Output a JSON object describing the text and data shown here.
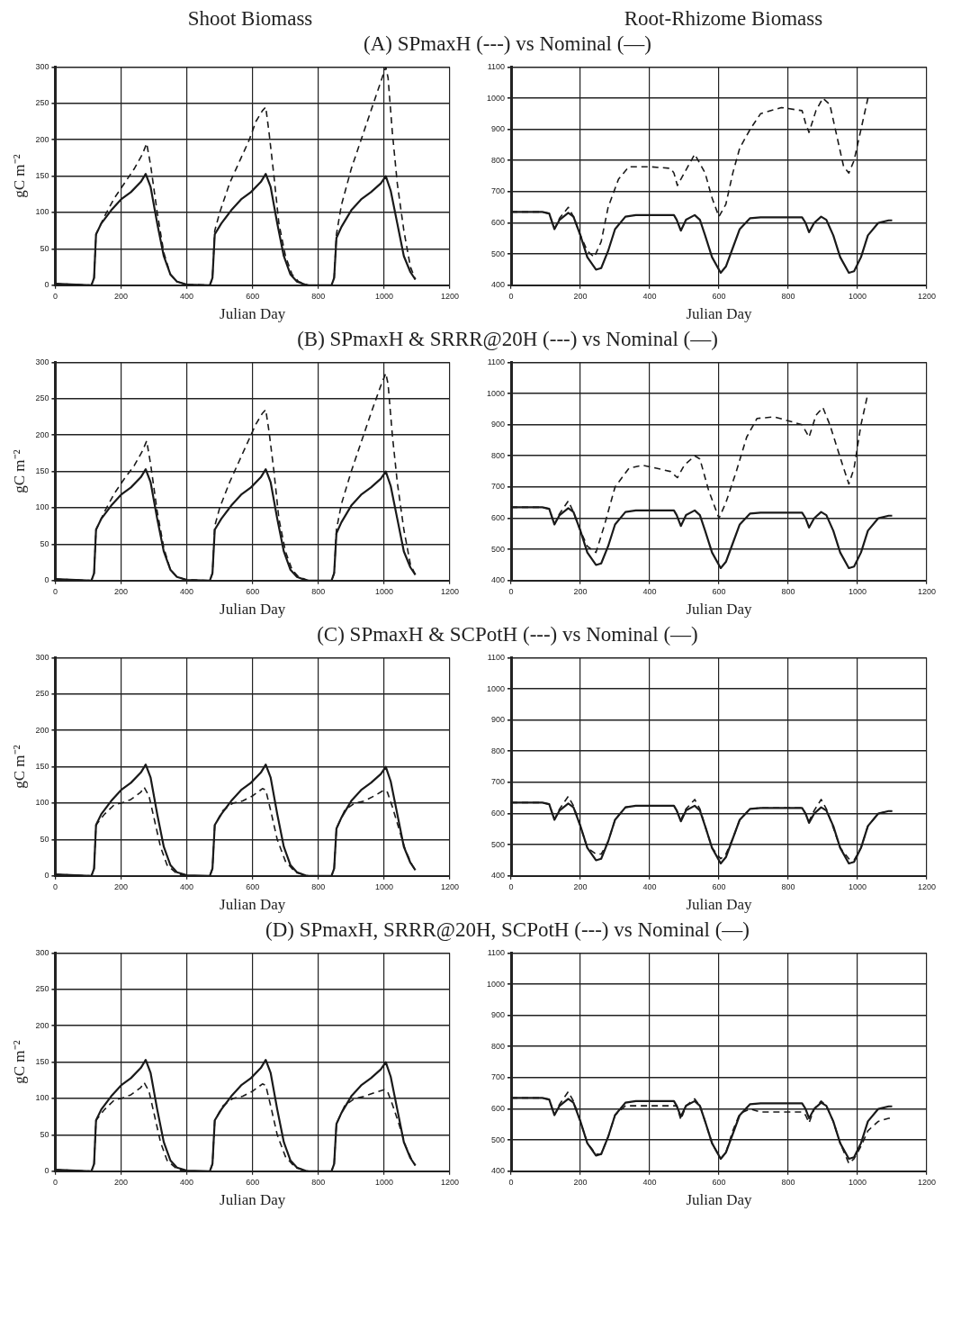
{
  "chart_data": [
    {
      "type": "line",
      "title": "Shoot Biomass",
      "subtitle": "(A) SPmaxH (---) vs Nominal (—)",
      "xlabel": "Julian Day",
      "ylabel": "gC m⁻²",
      "xlim": [
        0,
        1200
      ],
      "xticks": [
        0,
        200,
        400,
        600,
        800,
        1000,
        1200
      ],
      "ylim": [
        0,
        300
      ],
      "yticks": [
        0,
        50,
        100,
        150,
        200,
        250,
        300
      ],
      "grid": true,
      "series": [
        {
          "color": "#1a1a1a",
          "line_style": "solid",
          "x": [
            0,
            110,
            118,
            124,
            140,
            170,
            200,
            230,
            260,
            275,
            290,
            310,
            330,
            350,
            370,
            400,
            470,
            478,
            485,
            505,
            535,
            565,
            595,
            625,
            640,
            655,
            675,
            695,
            715,
            735,
            765,
            840,
            848,
            855,
            870,
            900,
            930,
            960,
            990,
            1005,
            1020,
            1040,
            1060,
            1080,
            1095
          ],
          "values": [
            2,
            0,
            10,
            70,
            85,
            103,
            118,
            128,
            142,
            153,
            135,
            85,
            40,
            15,
            5,
            1,
            0,
            10,
            70,
            85,
            103,
            118,
            128,
            142,
            153,
            135,
            85,
            40,
            15,
            5,
            0,
            0,
            10,
            65,
            80,
            103,
            118,
            128,
            140,
            150,
            130,
            85,
            40,
            18,
            8
          ]
        },
        {
          "color": "#1a1a1a",
          "line_style": "dashed",
          "x": [
            0,
            110,
            118,
            124,
            150,
            180,
            210,
            240,
            265,
            278,
            290,
            310,
            330,
            350,
            370,
            400,
            470,
            478,
            485,
            500,
            530,
            560,
            590,
            610,
            630,
            640,
            650,
            665,
            680,
            700,
            720,
            740,
            770,
            840,
            848,
            855,
            870,
            900,
            930,
            960,
            990,
            1005,
            1012,
            1025,
            1040,
            1060,
            1080,
            1095
          ],
          "values": [
            2,
            0,
            10,
            70,
            95,
            120,
            140,
            160,
            180,
            195,
            165,
            100,
            45,
            15,
            5,
            1,
            0,
            10,
            75,
            100,
            140,
            170,
            200,
            225,
            240,
            245,
            210,
            150,
            85,
            40,
            15,
            5,
            0,
            0,
            10,
            70,
            110,
            160,
            200,
            240,
            280,
            300,
            285,
            210,
            140,
            75,
            25,
            8
          ]
        }
      ]
    },
    {
      "type": "line",
      "title": "Root-Rhizome Biomass",
      "xlabel": "Julian Day",
      "xlim": [
        0,
        1200
      ],
      "xticks": [
        0,
        200,
        400,
        600,
        800,
        1000,
        1200
      ],
      "ylim": [
        400,
        1100
      ],
      "yticks": [
        400,
        500,
        600,
        700,
        800,
        900,
        1000,
        1100
      ],
      "grid": true,
      "series": [
        {
          "color": "#1a1a1a",
          "line_style": "solid",
          "x": [
            0,
            90,
            110,
            125,
            140,
            165,
            180,
            200,
            220,
            245,
            260,
            280,
            300,
            330,
            360,
            470,
            478,
            490,
            505,
            530,
            545,
            560,
            580,
            605,
            620,
            640,
            660,
            690,
            720,
            840,
            850,
            860,
            875,
            895,
            910,
            930,
            950,
            975,
            990,
            1010,
            1030,
            1060,
            1090,
            1100
          ],
          "values": [
            635,
            635,
            630,
            580,
            610,
            632,
            620,
            560,
            490,
            450,
            455,
            510,
            580,
            620,
            625,
            625,
            610,
            575,
            610,
            625,
            610,
            560,
            490,
            440,
            460,
            520,
            580,
            615,
            618,
            618,
            600,
            570,
            600,
            620,
            610,
            560,
            490,
            440,
            445,
            490,
            560,
            600,
            608,
            608
          ]
        },
        {
          "color": "#1a1a1a",
          "line_style": "dashed",
          "x": [
            0,
            90,
            110,
            125,
            140,
            165,
            180,
            200,
            220,
            240,
            260,
            280,
            310,
            340,
            400,
            460,
            470,
            480,
            500,
            530,
            560,
            580,
            600,
            620,
            640,
            660,
            690,
            720,
            780,
            840,
            850,
            860,
            880,
            900,
            920,
            940,
            960,
            975,
            990,
            1010,
            1030
          ],
          "values": [
            635,
            635,
            630,
            580,
            615,
            650,
            620,
            560,
            510,
            490,
            540,
            650,
            740,
            780,
            780,
            775,
            760,
            720,
            760,
            820,
            760,
            680,
            620,
            660,
            760,
            840,
            900,
            950,
            970,
            960,
            920,
            890,
            960,
            1000,
            980,
            880,
            780,
            760,
            800,
            900,
            1000
          ]
        }
      ]
    },
    {
      "type": "line",
      "subtitle": "(B) SPmaxH & SRRR@20H (---) vs Nominal (—)",
      "xlabel": "Julian Day",
      "ylabel": "gC m⁻²",
      "xlim": [
        0,
        1200
      ],
      "xticks": [
        0,
        200,
        400,
        600,
        800,
        1000,
        1200
      ],
      "ylim": [
        0,
        300
      ],
      "yticks": [
        0,
        50,
        100,
        150,
        200,
        250,
        300
      ],
      "grid": true,
      "series": [
        {
          "color": "#1a1a1a",
          "line_style": "solid",
          "x": [
            0,
            110,
            118,
            124,
            140,
            170,
            200,
            230,
            260,
            275,
            290,
            310,
            330,
            350,
            370,
            400,
            470,
            478,
            485,
            505,
            535,
            565,
            595,
            625,
            640,
            655,
            675,
            695,
            715,
            735,
            765,
            840,
            848,
            855,
            870,
            900,
            930,
            960,
            990,
            1005,
            1020,
            1040,
            1060,
            1080,
            1095
          ],
          "values": [
            2,
            0,
            10,
            70,
            85,
            103,
            118,
            128,
            142,
            153,
            135,
            85,
            40,
            15,
            5,
            1,
            0,
            10,
            70,
            85,
            103,
            118,
            128,
            142,
            153,
            135,
            85,
            40,
            15,
            5,
            0,
            0,
            10,
            65,
            80,
            103,
            118,
            128,
            140,
            150,
            130,
            85,
            40,
            18,
            8
          ]
        },
        {
          "color": "#1a1a1a",
          "line_style": "dashed",
          "x": [
            0,
            110,
            118,
            124,
            150,
            180,
            210,
            240,
            265,
            278,
            290,
            310,
            330,
            350,
            370,
            400,
            470,
            478,
            485,
            500,
            530,
            560,
            590,
            610,
            630,
            640,
            650,
            665,
            680,
            700,
            720,
            740,
            770,
            840,
            848,
            855,
            870,
            900,
            930,
            960,
            990,
            1005,
            1012,
            1025,
            1040,
            1060,
            1080,
            1095
          ],
          "values": [
            2,
            0,
            10,
            70,
            95,
            120,
            140,
            158,
            178,
            192,
            160,
            95,
            45,
            15,
            5,
            1,
            0,
            10,
            75,
            100,
            135,
            165,
            195,
            215,
            230,
            235,
            205,
            150,
            85,
            40,
            15,
            5,
            0,
            0,
            10,
            70,
            105,
            150,
            190,
            230,
            268,
            285,
            270,
            200,
            135,
            70,
            22,
            8
          ]
        }
      ]
    },
    {
      "type": "line",
      "xlabel": "Julian Day",
      "xlim": [
        0,
        1200
      ],
      "xticks": [
        0,
        200,
        400,
        600,
        800,
        1000,
        1200
      ],
      "ylim": [
        400,
        1100
      ],
      "yticks": [
        400,
        500,
        600,
        700,
        800,
        900,
        1000,
        1100
      ],
      "grid": true,
      "series": [
        {
          "color": "#1a1a1a",
          "line_style": "solid",
          "x": [
            0,
            90,
            110,
            125,
            140,
            165,
            180,
            200,
            220,
            245,
            260,
            280,
            300,
            330,
            360,
            470,
            478,
            490,
            505,
            530,
            545,
            560,
            580,
            605,
            620,
            640,
            660,
            690,
            720,
            840,
            850,
            860,
            875,
            895,
            910,
            930,
            950,
            975,
            990,
            1010,
            1030,
            1060,
            1090,
            1100
          ],
          "values": [
            635,
            635,
            630,
            580,
            610,
            632,
            620,
            560,
            490,
            450,
            455,
            510,
            580,
            620,
            625,
            625,
            610,
            575,
            610,
            625,
            610,
            560,
            490,
            440,
            460,
            520,
            580,
            615,
            618,
            618,
            600,
            570,
            600,
            620,
            610,
            560,
            490,
            440,
            445,
            490,
            560,
            600,
            608,
            608
          ]
        },
        {
          "color": "#1a1a1a",
          "line_style": "dashed",
          "x": [
            0,
            90,
            110,
            125,
            140,
            165,
            180,
            200,
            220,
            245,
            270,
            300,
            340,
            380,
            460,
            480,
            500,
            530,
            545,
            570,
            600,
            620,
            650,
            680,
            710,
            760,
            840,
            860,
            880,
            900,
            920,
            940,
            960,
            975,
            990,
            1010,
            1030
          ],
          "values": [
            635,
            635,
            630,
            580,
            615,
            655,
            620,
            560,
            510,
            490,
            580,
            700,
            760,
            770,
            750,
            730,
            770,
            800,
            790,
            690,
            600,
            650,
            750,
            860,
            920,
            925,
            900,
            860,
            930,
            955,
            900,
            830,
            760,
            710,
            760,
            900,
            1000
          ]
        }
      ]
    },
    {
      "type": "line",
      "subtitle": "(C) SPmaxH & SCPotH (---) vs Nominal (—)",
      "xlabel": "Julian Day",
      "ylabel": "gC m⁻²",
      "xlim": [
        0,
        1200
      ],
      "xticks": [
        0,
        200,
        400,
        600,
        800,
        1000,
        1200
      ],
      "ylim": [
        0,
        300
      ],
      "yticks": [
        0,
        50,
        100,
        150,
        200,
        250,
        300
      ],
      "grid": true,
      "series": [
        {
          "color": "#1a1a1a",
          "line_style": "solid",
          "x": [
            0,
            110,
            118,
            124,
            140,
            170,
            200,
            230,
            260,
            275,
            290,
            310,
            330,
            350,
            370,
            400,
            470,
            478,
            485,
            505,
            535,
            565,
            595,
            625,
            640,
            655,
            675,
            695,
            715,
            735,
            765,
            840,
            848,
            855,
            870,
            900,
            930,
            960,
            990,
            1005,
            1020,
            1040,
            1060,
            1080,
            1095
          ],
          "values": [
            2,
            0,
            10,
            70,
            85,
            103,
            118,
            128,
            142,
            153,
            135,
            85,
            40,
            15,
            5,
            1,
            0,
            10,
            70,
            85,
            103,
            118,
            128,
            142,
            153,
            135,
            85,
            40,
            15,
            5,
            0,
            0,
            10,
            65,
            80,
            103,
            118,
            128,
            140,
            150,
            130,
            85,
            40,
            18,
            8
          ]
        },
        {
          "color": "#1a1a1a",
          "line_style": "dashed",
          "x": [
            0,
            110,
            118,
            124,
            150,
            180,
            200,
            230,
            260,
            270,
            285,
            300,
            320,
            340,
            370,
            400,
            470,
            478,
            485,
            510,
            540,
            570,
            600,
            630,
            640,
            655,
            675,
            700,
            730,
            770,
            840,
            848,
            855,
            880,
            910,
            940,
            970,
            1000,
            1010,
            1025,
            1045,
            1065,
            1085,
            1095
          ],
          "values": [
            2,
            0,
            10,
            70,
            85,
            98,
            100,
            105,
            115,
            122,
            110,
            80,
            40,
            15,
            3,
            0,
            0,
            10,
            70,
            90,
            100,
            103,
            110,
            120,
            118,
            90,
            50,
            20,
            5,
            0,
            0,
            10,
            65,
            90,
            100,
            103,
            110,
            118,
            115,
            95,
            65,
            35,
            15,
            8
          ]
        }
      ]
    },
    {
      "type": "line",
      "xlabel": "Julian Day",
      "xlim": [
        0,
        1200
      ],
      "xticks": [
        0,
        200,
        400,
        600,
        800,
        1000,
        1200
      ],
      "ylim": [
        400,
        1100
      ],
      "yticks": [
        400,
        500,
        600,
        700,
        800,
        900,
        1000,
        1100
      ],
      "grid": true,
      "series": [
        {
          "color": "#1a1a1a",
          "line_style": "solid",
          "x": [
            0,
            90,
            110,
            125,
            140,
            165,
            180,
            200,
            220,
            245,
            260,
            280,
            300,
            330,
            360,
            470,
            478,
            490,
            505,
            530,
            545,
            560,
            580,
            605,
            620,
            640,
            660,
            690,
            720,
            840,
            850,
            860,
            875,
            895,
            910,
            930,
            950,
            975,
            990,
            1010,
            1030,
            1060,
            1090,
            1100
          ],
          "values": [
            635,
            635,
            630,
            580,
            610,
            632,
            620,
            560,
            490,
            450,
            455,
            510,
            580,
            620,
            625,
            625,
            610,
            575,
            610,
            625,
            610,
            560,
            490,
            440,
            460,
            520,
            580,
            615,
            618,
            618,
            600,
            570,
            600,
            620,
            610,
            560,
            490,
            440,
            445,
            490,
            560,
            600,
            608,
            608
          ]
        },
        {
          "color": "#1a1a1a",
          "line_style": "dashed",
          "x": [
            0,
            90,
            110,
            125,
            140,
            165,
            180,
            200,
            220,
            245,
            260,
            280,
            300,
            330,
            360,
            470,
            478,
            490,
            505,
            530,
            545,
            560,
            580,
            605,
            620,
            640,
            660,
            690,
            720,
            840,
            850,
            860,
            875,
            895,
            910,
            930,
            950,
            975,
            990,
            1010,
            1030,
            1060,
            1090,
            1100
          ],
          "values": [
            635,
            635,
            630,
            580,
            615,
            655,
            625,
            560,
            490,
            470,
            470,
            510,
            580,
            620,
            625,
            625,
            610,
            580,
            615,
            645,
            615,
            560,
            490,
            455,
            470,
            520,
            580,
            615,
            618,
            618,
            600,
            575,
            610,
            645,
            615,
            555,
            490,
            455,
            450,
            490,
            560,
            600,
            608,
            608
          ]
        }
      ]
    },
    {
      "type": "line",
      "subtitle": "(D) SPmaxH, SRRR@20H, SCPotH (---) vs Nominal (—)",
      "xlabel": "Julian Day",
      "ylabel": "gC m⁻²",
      "xlim": [
        0,
        1200
      ],
      "xticks": [
        0,
        200,
        400,
        600,
        800,
        1000,
        1200
      ],
      "ylim": [
        0,
        300
      ],
      "yticks": [
        0,
        50,
        100,
        150,
        200,
        250,
        300
      ],
      "grid": true,
      "series": [
        {
          "color": "#1a1a1a",
          "line_style": "solid",
          "x": [
            0,
            110,
            118,
            124,
            140,
            170,
            200,
            230,
            260,
            275,
            290,
            310,
            330,
            350,
            370,
            400,
            470,
            478,
            485,
            505,
            535,
            565,
            595,
            625,
            640,
            655,
            675,
            695,
            715,
            735,
            765,
            840,
            848,
            855,
            870,
            900,
            930,
            960,
            990,
            1005,
            1020,
            1040,
            1060,
            1080,
            1095
          ],
          "values": [
            2,
            0,
            10,
            70,
            85,
            103,
            118,
            128,
            142,
            153,
            135,
            85,
            40,
            15,
            5,
            1,
            0,
            10,
            70,
            85,
            103,
            118,
            128,
            142,
            153,
            135,
            85,
            40,
            15,
            5,
            0,
            0,
            10,
            65,
            80,
            103,
            118,
            128,
            140,
            150,
            130,
            85,
            40,
            18,
            8
          ]
        },
        {
          "color": "#1a1a1a",
          "line_style": "dashed",
          "x": [
            0,
            110,
            118,
            124,
            150,
            180,
            200,
            230,
            260,
            270,
            285,
            300,
            320,
            340,
            370,
            400,
            470,
            478,
            485,
            510,
            540,
            570,
            600,
            630,
            640,
            655,
            675,
            700,
            730,
            770,
            840,
            848,
            855,
            880,
            910,
            940,
            970,
            1000,
            1010,
            1025,
            1045,
            1065,
            1085,
            1095
          ],
          "values": [
            2,
            0,
            10,
            70,
            85,
            98,
            100,
            105,
            115,
            122,
            110,
            80,
            40,
            15,
            3,
            0,
            0,
            10,
            70,
            90,
            100,
            103,
            110,
            120,
            118,
            90,
            50,
            20,
            5,
            0,
            0,
            10,
            65,
            90,
            100,
            103,
            108,
            112,
            110,
            92,
            65,
            35,
            15,
            8
          ]
        }
      ]
    },
    {
      "type": "line",
      "xlabel": "Julian Day",
      "xlim": [
        0,
        1200
      ],
      "xticks": [
        0,
        200,
        400,
        600,
        800,
        1000,
        1200
      ],
      "ylim": [
        400,
        1100
      ],
      "yticks": [
        400,
        500,
        600,
        700,
        800,
        900,
        1000,
        1100
      ],
      "grid": true,
      "series": [
        {
          "color": "#1a1a1a",
          "line_style": "solid",
          "x": [
            0,
            90,
            110,
            125,
            140,
            165,
            180,
            200,
            220,
            245,
            260,
            280,
            300,
            330,
            360,
            470,
            478,
            490,
            505,
            530,
            545,
            560,
            580,
            605,
            620,
            640,
            660,
            690,
            720,
            840,
            850,
            860,
            875,
            895,
            910,
            930,
            950,
            975,
            990,
            1010,
            1030,
            1060,
            1090,
            1100
          ],
          "values": [
            635,
            635,
            630,
            580,
            610,
            632,
            620,
            560,
            490,
            450,
            455,
            510,
            580,
            620,
            625,
            625,
            610,
            575,
            610,
            625,
            610,
            560,
            490,
            440,
            460,
            520,
            580,
            615,
            618,
            618,
            600,
            570,
            600,
            620,
            610,
            560,
            490,
            440,
            445,
            490,
            560,
            600,
            608,
            608
          ]
        },
        {
          "color": "#1a1a1a",
          "line_style": "dashed",
          "x": [
            0,
            90,
            110,
            125,
            140,
            165,
            180,
            200,
            220,
            245,
            260,
            280,
            300,
            330,
            360,
            470,
            478,
            490,
            505,
            530,
            545,
            560,
            580,
            605,
            620,
            640,
            660,
            690,
            720,
            840,
            850,
            860,
            875,
            895,
            910,
            930,
            950,
            975,
            990,
            1010,
            1030,
            1060,
            1090,
            1100
          ],
          "values": [
            635,
            635,
            630,
            580,
            615,
            655,
            625,
            560,
            490,
            455,
            455,
            510,
            580,
            610,
            610,
            610,
            610,
            565,
            610,
            632,
            610,
            560,
            490,
            440,
            460,
            530,
            585,
            600,
            590,
            590,
            580,
            555,
            600,
            625,
            610,
            560,
            490,
            425,
            440,
            480,
            530,
            560,
            570,
            570
          ]
        }
      ]
    }
  ]
}
